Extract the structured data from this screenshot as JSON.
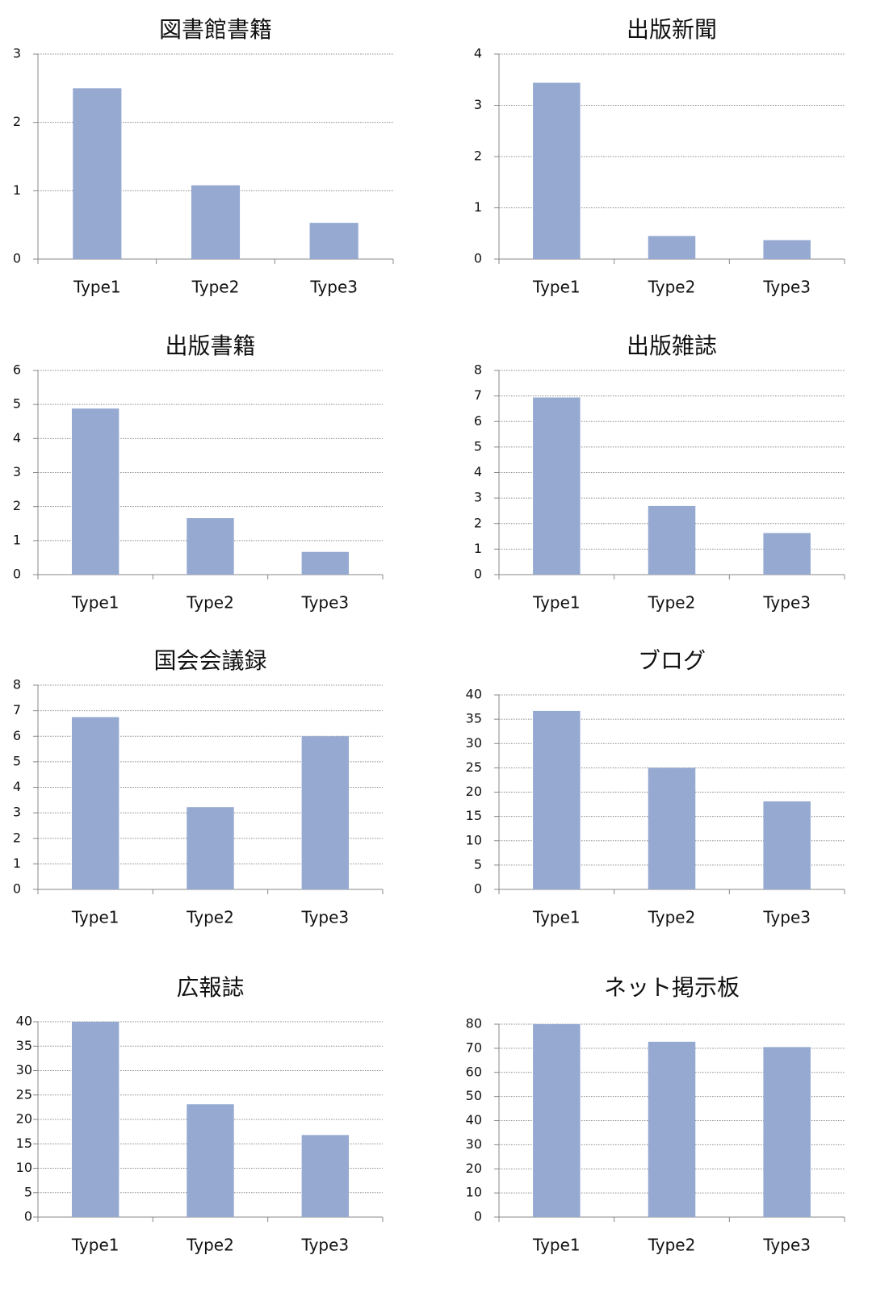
{
  "chart_data": [
    {
      "type": "bar",
      "title": "図書館書籍",
      "categories": [
        "Type1",
        "Type2",
        "Type3"
      ],
      "values": [
        2.5,
        1.08,
        0.53
      ],
      "ylim": [
        0,
        3
      ],
      "yticks": [
        0,
        1,
        2,
        3
      ],
      "grid": true,
      "bar_color": "#95a9d1"
    },
    {
      "type": "bar",
      "title": "出版新聞",
      "categories": [
        "Type1",
        "Type2",
        "Type3"
      ],
      "values": [
        3.44,
        0.45,
        0.37
      ],
      "ylim": [
        0,
        4
      ],
      "yticks": [
        0,
        1,
        2,
        3,
        4
      ],
      "grid": true,
      "bar_color": "#95a9d1"
    },
    {
      "type": "bar",
      "title": "出版書籍",
      "categories": [
        "Type1",
        "Type2",
        "Type3"
      ],
      "values": [
        4.88,
        1.66,
        0.67
      ],
      "ylim": [
        0,
        6
      ],
      "yticks": [
        0,
        1,
        2,
        3,
        4,
        5,
        6
      ],
      "grid": true,
      "bar_color": "#95a9d1"
    },
    {
      "type": "bar",
      "title": "出版雑誌",
      "categories": [
        "Type1",
        "Type2",
        "Type3"
      ],
      "values": [
        6.94,
        2.69,
        1.63
      ],
      "ylim": [
        0,
        8
      ],
      "yticks": [
        0,
        1,
        2,
        3,
        4,
        5,
        6,
        7,
        8
      ],
      "grid": true,
      "bar_color": "#95a9d1"
    },
    {
      "type": "bar",
      "title": "国会会議録",
      "categories": [
        "Type1",
        "Type2",
        "Type3"
      ],
      "values": [
        6.75,
        3.22,
        6.0
      ],
      "ylim": [
        0,
        8
      ],
      "yticks": [
        0,
        1,
        2,
        3,
        4,
        5,
        6,
        7,
        8
      ],
      "grid": true,
      "bar_color": "#95a9d1"
    },
    {
      "type": "bar",
      "title": "ブログ",
      "categories": [
        "Type1",
        "Type2",
        "Type3"
      ],
      "values": [
        36.7,
        25.0,
        18.1
      ],
      "ylim": [
        0,
        40
      ],
      "yticks": [
        0,
        5,
        10,
        15,
        20,
        25,
        30,
        35,
        40
      ],
      "grid": true,
      "bar_color": "#95a9d1"
    },
    {
      "type": "bar",
      "title": "広報誌",
      "categories": [
        "Type1",
        "Type2",
        "Type3"
      ],
      "values": [
        40.6,
        23.1,
        16.8
      ],
      "ylim": [
        0,
        40
      ],
      "yticks": [
        0,
        5,
        10,
        15,
        20,
        25,
        30,
        35,
        40
      ],
      "grid": true,
      "bar_color": "#95a9d1"
    },
    {
      "type": "bar",
      "title": "ネット掲示板",
      "categories": [
        "Type1",
        "Type2",
        "Type3"
      ],
      "values": [
        80.0,
        72.7,
        70.5
      ],
      "ylim": [
        0,
        80
      ],
      "yticks": [
        0,
        10,
        20,
        30,
        40,
        50,
        60,
        70,
        80
      ],
      "grid": true,
      "bar_color": "#95a9d1"
    }
  ]
}
